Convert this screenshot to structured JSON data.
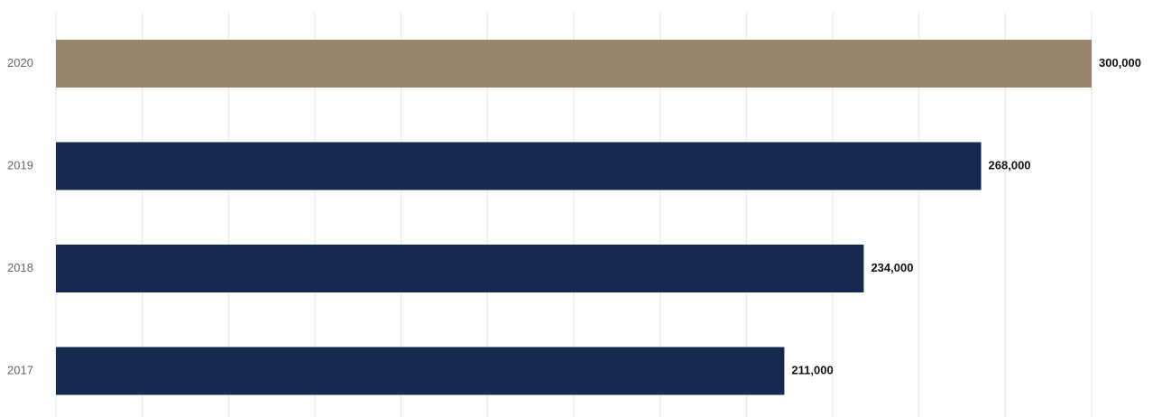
{
  "chart_data": {
    "type": "bar",
    "orientation": "horizontal",
    "categories": [
      "2020",
      "2019",
      "2018",
      "2017"
    ],
    "values": [
      300000,
      268000,
      234000,
      211000
    ],
    "data_labels": [
      "300,000",
      "268,000",
      "234,000",
      "211,000"
    ],
    "title": "",
    "xlabel": "",
    "ylabel": "",
    "xlim": [
      0,
      300000
    ],
    "grid": true,
    "legend": "none",
    "colors": {
      "highlight": "#97856b",
      "default": "#142a4f",
      "grid": "#e3e3e3"
    },
    "highlight_category": "2020"
  }
}
